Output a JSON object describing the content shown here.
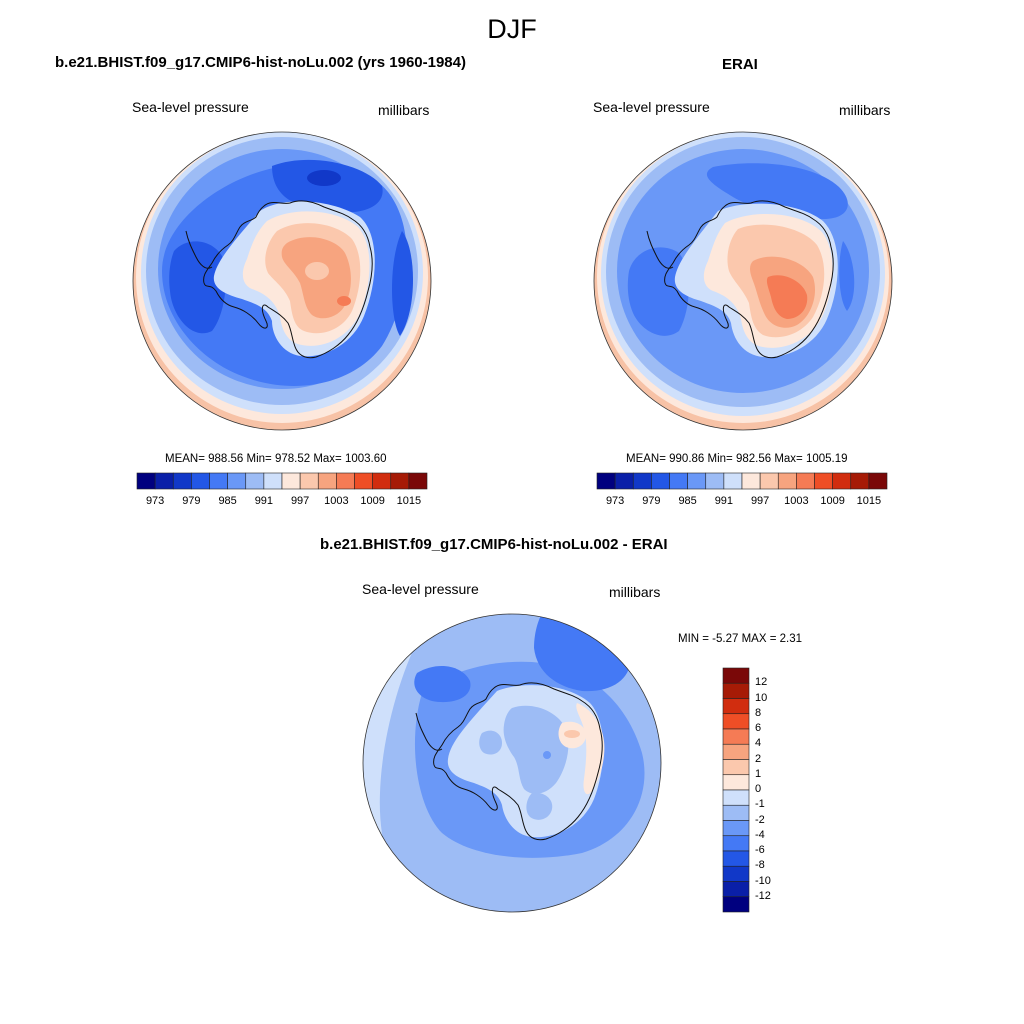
{
  "figure": {
    "season": "DJF"
  },
  "panels": [
    {
      "title": "b.e21.BHIST.f09_g17.CMIP6-hist-noLu.002 (yrs 1960-1984)",
      "variable": "Sea-level pressure",
      "units": "millibars",
      "stats_text": "MEAN= 988.56  Min= 978.52  Max= 1003.60"
    },
    {
      "title": "ERAI",
      "variable": "Sea-level pressure",
      "units": "millibars",
      "stats_text": "MEAN= 990.86  Min= 982.56  Max= 1005.19"
    },
    {
      "title": "b.e21.BHIST.f09_g17.CMIP6-hist-noLu.002 - ERAI",
      "variable": "Sea-level pressure",
      "units": "millibars",
      "stats_text": "MIN =  -5.27 MAX =   2.31"
    }
  ],
  "colorbar_abs": {
    "colors": [
      "#00007f",
      "#0a1fa8",
      "#1138c8",
      "#2357e6",
      "#4479f5",
      "#6a98f7",
      "#9dbcf5",
      "#cfe0fb",
      "#fde8dc",
      "#fbc8ad",
      "#f7a47f",
      "#f57b55",
      "#ef4e26",
      "#d12d0f",
      "#a61b06",
      "#7a0808"
    ],
    "tick_labels": [
      "973",
      "979",
      "985",
      "991",
      "997",
      "1003",
      "1009",
      "1015"
    ]
  },
  "colorbar_diff": {
    "colors": [
      "#00007f",
      "#0a1fa8",
      "#1138c8",
      "#2357e6",
      "#4479f5",
      "#6a98f7",
      "#9dbcf5",
      "#cfe0fb",
      "#fde8dc",
      "#fbc8ad",
      "#f7a47f",
      "#f57b55",
      "#ef4e26",
      "#d12d0f",
      "#a61b06",
      "#7a0808"
    ],
    "tick_labels": [
      "12",
      "10",
      "8",
      "6",
      "4",
      "2",
      "1",
      "0",
      "-1",
      "-2",
      "-4",
      "-6",
      "-8",
      "-10",
      "-12"
    ]
  },
  "chart_data": [
    {
      "type": "heatmap",
      "projection": "south-polar-stereographic",
      "region": "Antarctica",
      "title": "b.e21.BHIST.f09_g17.CMIP6-hist-noLu.002 (yrs 1960-1984)",
      "variable": "Sea-level pressure",
      "units": "millibars",
      "mean": 988.56,
      "min": 978.52,
      "max": 1003.6,
      "contour_levels": [
        973,
        976,
        979,
        982,
        985,
        988,
        991,
        994,
        997,
        1000,
        1003,
        1006,
        1009,
        1012,
        1015
      ],
      "colorbar_ticks": [
        973,
        979,
        985,
        991,
        997,
        1003,
        1009,
        1015
      ]
    },
    {
      "type": "heatmap",
      "projection": "south-polar-stereographic",
      "region": "Antarctica",
      "title": "ERAI",
      "variable": "Sea-level pressure",
      "units": "millibars",
      "mean": 990.86,
      "min": 982.56,
      "max": 1005.19,
      "contour_levels": [
        973,
        976,
        979,
        982,
        985,
        988,
        991,
        994,
        997,
        1000,
        1003,
        1006,
        1009,
        1012,
        1015
      ],
      "colorbar_ticks": [
        973,
        979,
        985,
        991,
        997,
        1003,
        1009,
        1015
      ]
    },
    {
      "type": "heatmap",
      "projection": "south-polar-stereographic",
      "region": "Antarctica",
      "title": "b.e21.BHIST.f09_g17.CMIP6-hist-noLu.002 - ERAI",
      "variable": "Sea-level pressure",
      "units": "millibars",
      "min": -5.27,
      "max": 2.31,
      "contour_levels": [
        -12,
        -10,
        -8,
        -6,
        -4,
        -2,
        -1,
        0,
        1,
        2,
        4,
        6,
        8,
        10,
        12
      ],
      "colorbar_ticks": [
        12,
        10,
        8,
        6,
        4,
        2,
        1,
        0,
        -1,
        -2,
        -4,
        -6,
        -8,
        -10,
        -12
      ]
    }
  ]
}
